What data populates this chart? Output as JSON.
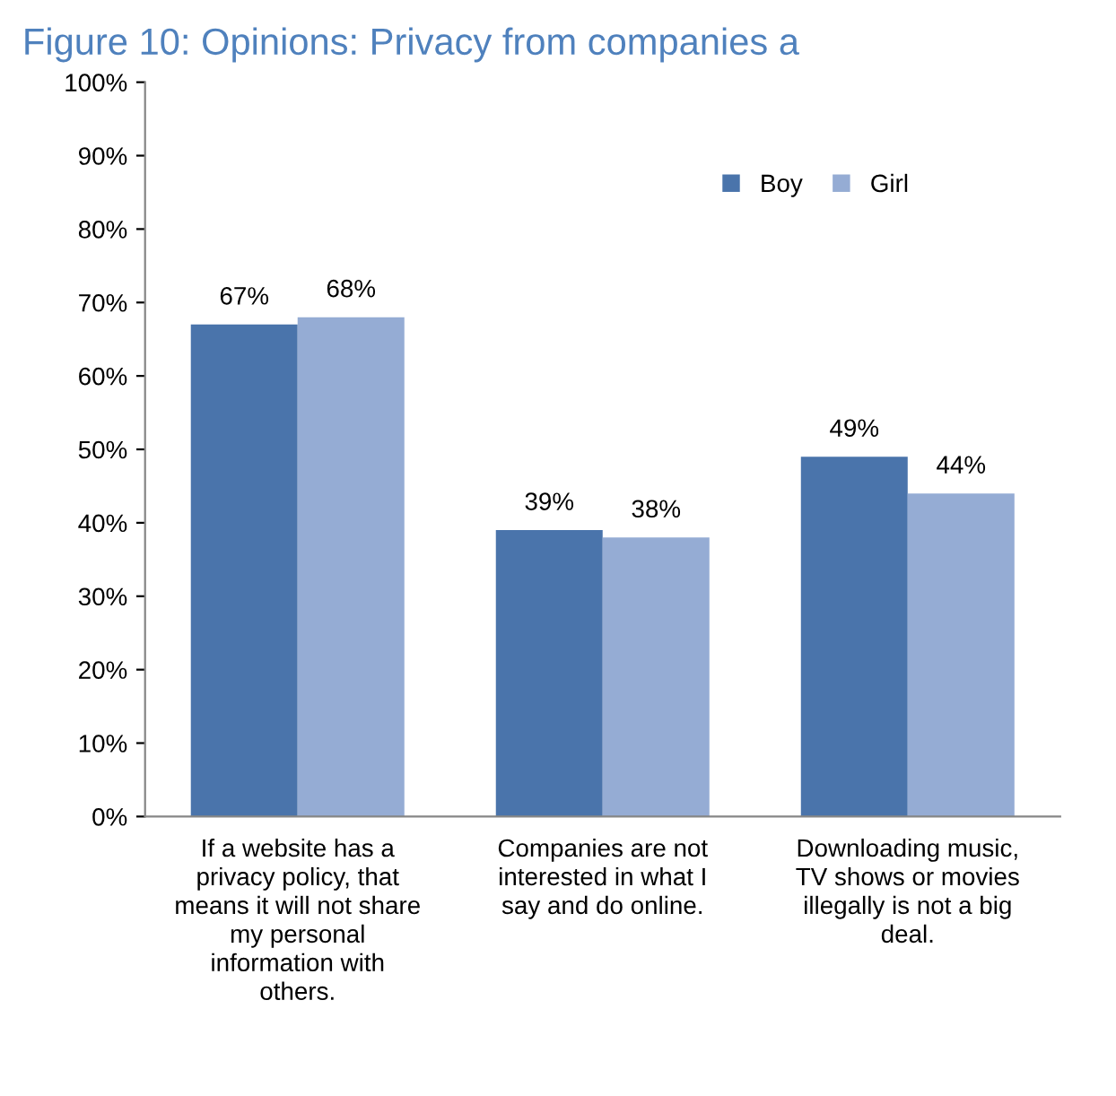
{
  "chart_data": {
    "type": "bar",
    "title": "Figure 10: Opinions: Privacy from companies a",
    "categories": [
      "If a website has a privacy policy, that means it will not share my personal information with others.",
      "Companies are not interested in what I say and do online.",
      "Downloading music, TV shows or movies illegally is not a big deal."
    ],
    "series": [
      {
        "name": "Boy",
        "color": "#4a74ab",
        "values": [
          67,
          39,
          49
        ],
        "value_labels": [
          "67%",
          "39%",
          "49%"
        ]
      },
      {
        "name": "Girl",
        "color": "#95acd4",
        "values": [
          68,
          38,
          44
        ],
        "value_labels": [
          "68%",
          "38%",
          "44%"
        ]
      }
    ],
    "ylim": [
      0,
      100
    ],
    "yticks": [
      {
        "value": 0,
        "label": "0%"
      },
      {
        "value": 10,
        "label": "10%"
      },
      {
        "value": 20,
        "label": "20%"
      },
      {
        "value": 30,
        "label": "30%"
      },
      {
        "value": 40,
        "label": "40%"
      },
      {
        "value": 50,
        "label": "50%"
      },
      {
        "value": 60,
        "label": "60%"
      },
      {
        "value": 70,
        "label": "70%"
      },
      {
        "value": 80,
        "label": "80%"
      },
      {
        "value": 90,
        "label": "90%"
      },
      {
        "value": 100,
        "label": "100%"
      }
    ],
    "data_labels": true,
    "grid": false,
    "legend": "top right"
  }
}
